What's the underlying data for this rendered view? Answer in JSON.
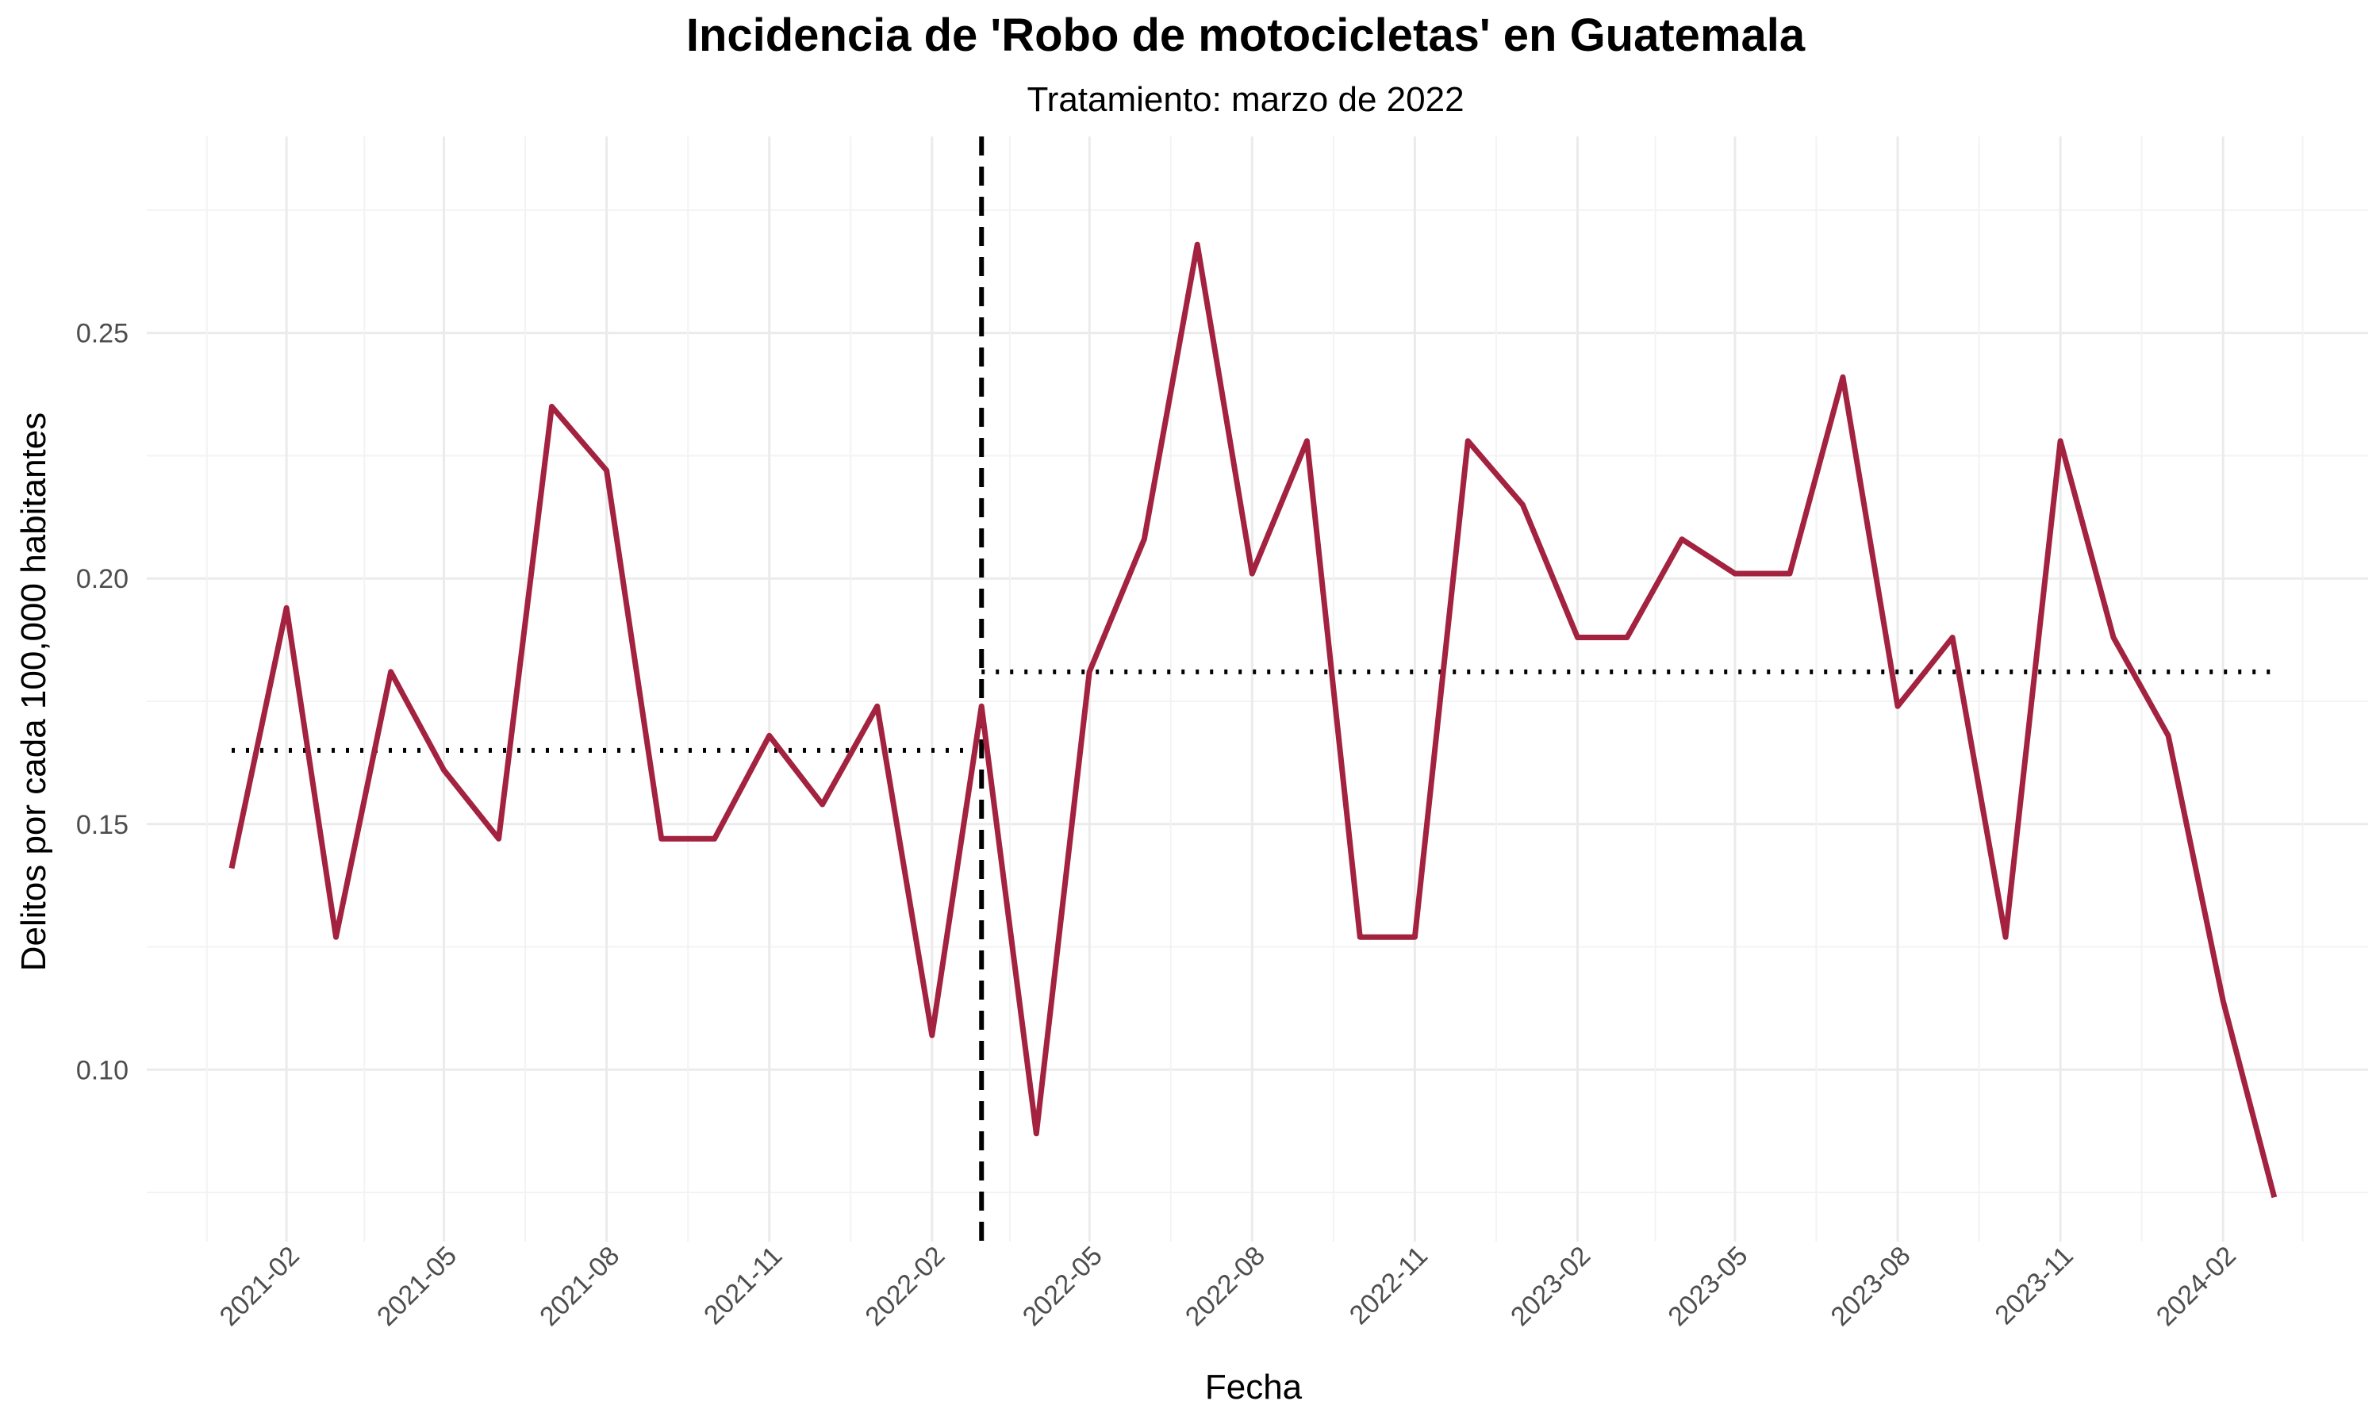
{
  "chart_data": {
    "type": "line",
    "title": "Incidencia de 'Robo de motocicletas' en Guatemala",
    "subtitle": "Tratamiento: marzo de 2022",
    "xlabel": "Fecha",
    "ylabel": "Delitos por cada 100,000 habitantes",
    "x_ticks": [
      "2021-02",
      "2021-05",
      "2021-08",
      "2021-11",
      "2022-02",
      "2022-05",
      "2022-08",
      "2022-11",
      "2023-02",
      "2023-05",
      "2023-08",
      "2023-11",
      "2024-02"
    ],
    "y_ticks": [
      "0.10",
      "0.15",
      "0.20",
      "0.25"
    ],
    "ylim": [
      0.065,
      0.29
    ],
    "xlim": [
      "2020-11-14",
      "2024-04-23"
    ],
    "grid": true,
    "series": [
      {
        "color": "#A3223F",
        "x": [
          "2021-01-01",
          "2021-02-01",
          "2021-03-01",
          "2021-04-01",
          "2021-05-01",
          "2021-06-01",
          "2021-07-01",
          "2021-08-01",
          "2021-09-01",
          "2021-10-01",
          "2021-11-01",
          "2021-12-01",
          "2022-01-01",
          "2022-02-01",
          "2022-03-01",
          "2022-04-01",
          "2022-05-01",
          "2022-06-01",
          "2022-07-01",
          "2022-08-01",
          "2022-09-01",
          "2022-10-01",
          "2022-11-01",
          "2022-12-01",
          "2023-01-01",
          "2023-02-01",
          "2023-03-01",
          "2023-04-01",
          "2023-05-01",
          "2023-06-01",
          "2023-07-01",
          "2023-08-01",
          "2023-09-01",
          "2023-10-01",
          "2023-11-01",
          "2023-12-01",
          "2024-01-01",
          "2024-02-01",
          "2024-03-01"
        ],
        "values": [
          0.141,
          0.194,
          0.127,
          0.181,
          0.161,
          0.147,
          0.235,
          0.222,
          0.147,
          0.147,
          0.168,
          0.154,
          0.174,
          0.107,
          0.174,
          0.087,
          0.181,
          0.208,
          0.268,
          0.201,
          0.228,
          0.127,
          0.127,
          0.228,
          0.215,
          0.188,
          0.188,
          0.208,
          0.201,
          0.201,
          0.241,
          0.174,
          0.188,
          0.127,
          0.228,
          0.188,
          0.168,
          0.114,
          0.074
        ]
      }
    ],
    "reference_lines": {
      "treatment_date": "2022-03-01",
      "pre_mean": {
        "value": 0.165,
        "x_start": "2021-01-01",
        "x_end": "2022-03-01"
      },
      "post_mean": {
        "value": 0.181,
        "x_start": "2022-03-01",
        "x_end": "2024-03-01"
      }
    }
  }
}
